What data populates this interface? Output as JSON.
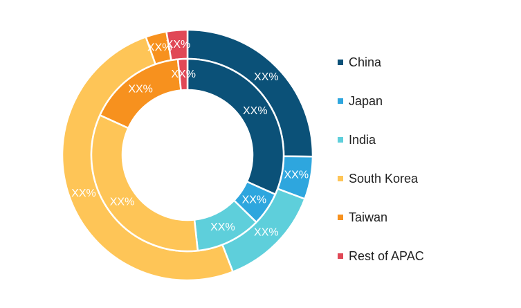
{
  "chart_data": {
    "type": "pie",
    "title": "",
    "categories": [
      "China",
      "Japan",
      "India",
      "South Korea",
      "Taiwan",
      "Rest of APAC"
    ],
    "colors": [
      "#0b5178",
      "#2ea6de",
      "#5ecfdb",
      "#fec557",
      "#f7911e",
      "#e04856"
    ],
    "series": [
      {
        "values": [
          25.2,
          5.5,
          13.4,
          50.5,
          2.7,
          2.7
        ],
        "labels": [
          "XX%",
          "XX%",
          "XX%",
          "XX%",
          "XX%",
          "XX%"
        ]
      },
      {
        "values": [
          31.7,
          5.6,
          11.0,
          33.5,
          16.6,
          1.6
        ],
        "labels": [
          "XX%",
          "XX%",
          "XX%",
          "XX%",
          "XX%",
          "XX%"
        ]
      }
    ],
    "legend_position": "right"
  }
}
